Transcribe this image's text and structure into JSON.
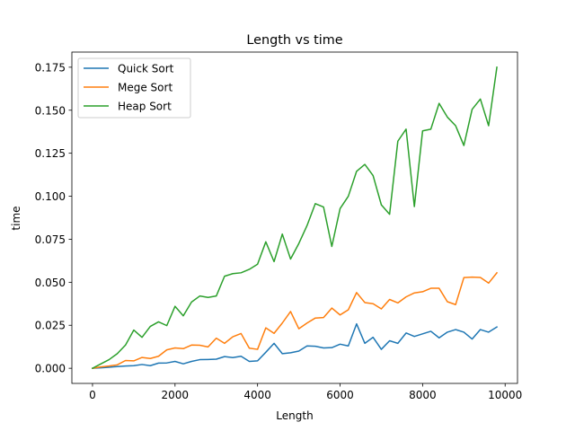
{
  "chart_data": {
    "type": "line",
    "title": "Length vs time",
    "xlabel": "Length",
    "ylabel": "time",
    "xlim": [
      -500,
      10300
    ],
    "ylim": [
      -0.0088,
      0.1838
    ],
    "x_ticks": [
      0,
      2000,
      4000,
      6000,
      8000,
      10000
    ],
    "x_tick_labels": [
      "0",
      "2000",
      "4000",
      "6000",
      "8000",
      "10000"
    ],
    "y_ticks": [
      0.0,
      0.025,
      0.05,
      0.075,
      0.1,
      0.125,
      0.15,
      0.175
    ],
    "y_tick_labels": [
      "0.000",
      "0.025",
      "0.050",
      "0.075",
      "0.100",
      "0.125",
      "0.150",
      "0.175"
    ],
    "legend_position": "upper-left",
    "grid": false,
    "x": [
      0,
      200,
      400,
      600,
      800,
      1000,
      1200,
      1400,
      1600,
      1800,
      2000,
      2200,
      2400,
      2600,
      2800,
      3000,
      3200,
      3400,
      3600,
      3800,
      4000,
      4200,
      4400,
      4600,
      4800,
      5000,
      5200,
      5400,
      5600,
      5800,
      6000,
      6200,
      6400,
      6600,
      6800,
      7000,
      7200,
      7400,
      7600,
      7800,
      8000,
      8200,
      8400,
      8600,
      8800,
      9000,
      9200,
      9400,
      9600,
      9800
    ],
    "series": [
      {
        "name": "Quick Sort",
        "color": "#1f77b4",
        "values": [
          0.0,
          0.0003,
          0.0006,
          0.001,
          0.0013,
          0.0015,
          0.0022,
          0.0015,
          0.003,
          0.0031,
          0.004,
          0.0026,
          0.004,
          0.005,
          0.0051,
          0.0053,
          0.0068,
          0.0062,
          0.007,
          0.004,
          0.0043,
          0.0093,
          0.0145,
          0.0085,
          0.009,
          0.01,
          0.013,
          0.0128,
          0.0118,
          0.012,
          0.014,
          0.013,
          0.0258,
          0.0145,
          0.018,
          0.011,
          0.016,
          0.0145,
          0.0205,
          0.0185,
          0.02,
          0.0215,
          0.0177,
          0.021,
          0.0225,
          0.021,
          0.017,
          0.0225,
          0.021,
          0.024
        ]
      },
      {
        "name": "Mege Sort",
        "color": "#ff7f0e",
        "values": [
          0.0,
          0.0008,
          0.0013,
          0.002,
          0.0045,
          0.0043,
          0.0063,
          0.0057,
          0.007,
          0.0107,
          0.0118,
          0.0114,
          0.0135,
          0.0134,
          0.0124,
          0.0175,
          0.0145,
          0.0183,
          0.0202,
          0.0117,
          0.011,
          0.0235,
          0.0203,
          0.0263,
          0.033,
          0.023,
          0.0263,
          0.0292,
          0.0295,
          0.035,
          0.031,
          0.034,
          0.044,
          0.0382,
          0.0375,
          0.0345,
          0.04,
          0.038,
          0.0415,
          0.0438,
          0.0445,
          0.0465,
          0.0465,
          0.0387,
          0.037,
          0.0527,
          0.053,
          0.0528,
          0.0495,
          0.0555
        ]
      },
      {
        "name": "Heap Sort",
        "color": "#2ca02c",
        "values": [
          0.0,
          0.0025,
          0.005,
          0.0085,
          0.0135,
          0.0222,
          0.018,
          0.0243,
          0.027,
          0.0248,
          0.036,
          0.0305,
          0.0385,
          0.042,
          0.0412,
          0.042,
          0.0535,
          0.055,
          0.0555,
          0.0575,
          0.0605,
          0.0735,
          0.062,
          0.078,
          0.0635,
          0.0725,
          0.083,
          0.0957,
          0.0937,
          0.0708,
          0.0928,
          0.1,
          0.1145,
          0.1185,
          0.112,
          0.095,
          0.0895,
          0.132,
          0.139,
          0.094,
          0.138,
          0.139,
          0.154,
          0.146,
          0.141,
          0.1295,
          0.1505,
          0.1565,
          0.141,
          0.175
        ]
      }
    ]
  }
}
